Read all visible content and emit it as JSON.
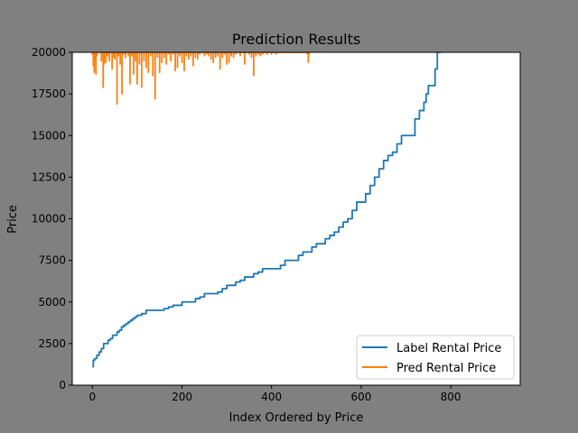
{
  "chart_data": {
    "type": "line",
    "title": "Prediction Results",
    "xlabel": "Index Ordered by Price",
    "ylabel": "Price",
    "xlim": [
      -45,
      955
    ],
    "ylim": [
      0,
      20000
    ],
    "xticks": [
      0,
      200,
      400,
      600,
      800
    ],
    "yticks": [
      0,
      2500,
      5000,
      7500,
      10000,
      12500,
      15000,
      17500,
      20000
    ],
    "legend_position": "lower-right",
    "grid": false,
    "series": [
      {
        "name": "Label Rental Price",
        "color": "#1f77b4",
        "x": [
          0,
          2,
          5,
          10,
          15,
          20,
          25,
          30,
          35,
          40,
          45,
          50,
          55,
          60,
          65,
          70,
          75,
          80,
          85,
          90,
          95,
          100,
          110,
          120,
          130,
          140,
          150,
          160,
          170,
          180,
          190,
          200,
          210,
          220,
          230,
          240,
          250,
          260,
          270,
          280,
          290,
          300,
          310,
          320,
          330,
          340,
          350,
          360,
          370,
          380,
          390,
          400,
          410,
          420,
          430,
          440,
          450,
          460,
          470,
          480,
          490,
          500,
          510,
          520,
          530,
          540,
          550,
          560,
          570,
          580,
          590,
          600,
          605,
          610,
          620,
          630,
          640,
          650,
          660,
          670,
          680,
          690,
          700,
          710,
          720,
          730,
          740,
          745,
          750,
          755,
          760,
          765,
          770,
          775,
          778
        ],
        "y": [
          1100,
          1500,
          1600,
          1800,
          2000,
          2200,
          2500,
          2500,
          2700,
          2800,
          3000,
          3000,
          3200,
          3300,
          3500,
          3600,
          3700,
          3800,
          3900,
          4000,
          4100,
          4200,
          4300,
          4500,
          4500,
          4500,
          4500,
          4600,
          4700,
          4800,
          4800,
          5000,
          5000,
          5000,
          5200,
          5300,
          5500,
          5500,
          5500,
          5600,
          5800,
          6000,
          6000,
          6200,
          6300,
          6500,
          6500,
          6700,
          6800,
          7000,
          7000,
          7000,
          7000,
          7200,
          7500,
          7500,
          7500,
          7800,
          8000,
          8000,
          8300,
          8500,
          8500,
          8800,
          9000,
          9200,
          9500,
          9800,
          10000,
          10500,
          11000,
          11000,
          11000,
          11500,
          12000,
          12500,
          13000,
          13500,
          13800,
          14000,
          14500,
          15000,
          15000,
          15000,
          16000,
          16500,
          17000,
          17500,
          18000,
          18000,
          18000,
          19000,
          20000,
          20000,
          20000
        ]
      },
      {
        "name": "Pred Rental Price",
        "color": "#ff7f0e",
        "x": [
          0,
          2,
          4,
          6,
          8,
          10,
          12,
          20,
          24,
          26,
          30,
          34,
          38,
          44,
          48,
          50,
          55,
          58,
          62,
          66,
          70,
          74,
          80,
          84,
          88,
          92,
          96,
          100,
          105,
          110,
          115,
          120,
          125,
          130,
          135,
          140,
          145,
          150,
          155,
          160,
          165,
          170,
          175,
          180,
          185,
          190,
          195,
          200,
          205,
          210,
          215,
          220,
          225,
          230,
          235,
          240,
          250,
          255,
          260,
          265,
          270,
          275,
          280,
          285,
          290,
          295,
          300,
          305,
          310,
          315,
          320,
          330,
          340,
          350,
          355,
          360,
          365,
          370,
          375,
          380,
          390,
          400,
          410,
          480,
          482,
          484
        ],
        "y": [
          19900,
          19200,
          18800,
          19500,
          18700,
          19800,
          20000,
          19500,
          17900,
          19300,
          19400,
          19800,
          19500,
          19000,
          19700,
          19600,
          16900,
          19800,
          19300,
          17500,
          19900,
          19700,
          19800,
          18100,
          19800,
          18700,
          19500,
          18100,
          19300,
          17900,
          19500,
          19100,
          18800,
          19800,
          18600,
          17200,
          19700,
          18800,
          19400,
          19700,
          19300,
          19900,
          19500,
          19900,
          18900,
          19100,
          19800,
          19400,
          18900,
          19800,
          19600,
          19800,
          19200,
          19700,
          19600,
          19900,
          19800,
          19900,
          19800,
          19600,
          19400,
          19700,
          19800,
          19000,
          19700,
          19900,
          19300,
          19400,
          19800,
          19700,
          19900,
          19800,
          19300,
          19900,
          19700,
          18600,
          19800,
          19900,
          19800,
          19900,
          19900,
          19900,
          19900,
          19900,
          19400,
          19900
        ]
      }
    ]
  }
}
